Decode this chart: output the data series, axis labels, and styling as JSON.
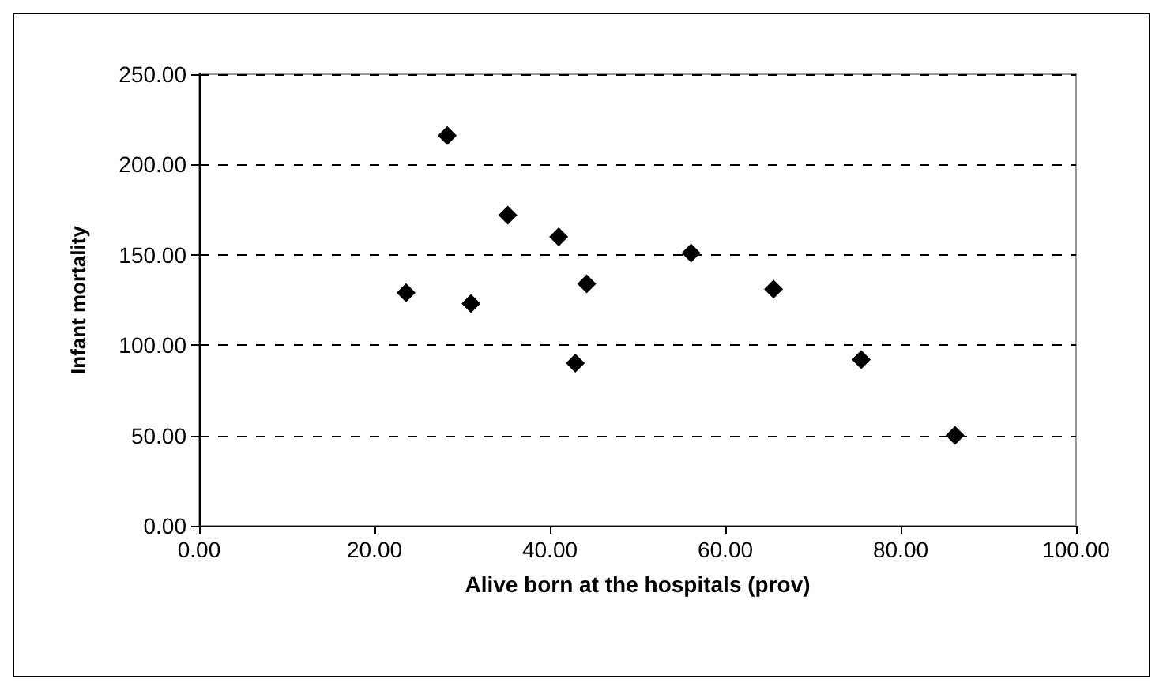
{
  "chart_data": {
    "type": "scatter",
    "xlabel": "Alive born at the hospitals (prov)",
    "ylabel": "Infant mortality",
    "x": [
      23.6,
      28.3,
      31.0,
      35.2,
      41.0,
      42.9,
      44.2,
      56.1,
      65.5,
      75.5,
      86.2
    ],
    "series": [
      {
        "color": "#000000",
        "values": [
          129,
          216,
          123,
          172,
          160,
          90,
          134,
          151,
          131,
          92,
          50
        ]
      }
    ],
    "xlim": [
      0,
      100
    ],
    "xticks": [
      {
        "value": 0,
        "label": "0.00"
      },
      {
        "value": 20,
        "label": "20.00"
      },
      {
        "value": 40,
        "label": "40.00"
      },
      {
        "value": 60,
        "label": "60.00"
      },
      {
        "value": 80,
        "label": "80.00"
      },
      {
        "value": 100,
        "label": "100.00"
      }
    ],
    "ylim": [
      0,
      250
    ],
    "yticks": [
      {
        "value": 0,
        "label": "0.00"
      },
      {
        "value": 50,
        "label": "50.00"
      },
      {
        "value": 100,
        "label": "100.00"
      },
      {
        "value": 150,
        "label": "150.00"
      },
      {
        "value": 200,
        "label": "200.00"
      },
      {
        "value": 250,
        "label": "250.00"
      }
    ],
    "grid": "y",
    "marker": "diamond"
  }
}
